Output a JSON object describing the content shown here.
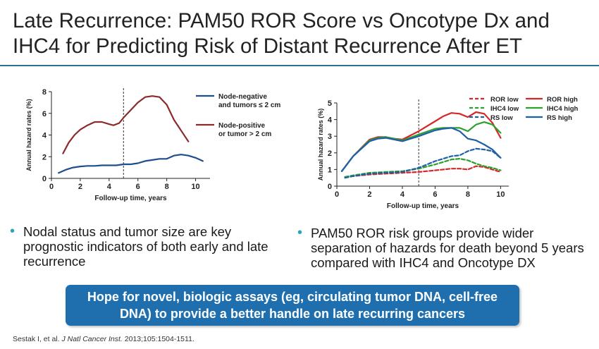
{
  "slide": {
    "title": "Late Recurrence: PAM50 ROR Score vs Oncotype Dx and IHC4 for Predicting Risk of Distant Recurrence After ET",
    "bullets": [
      "Nodal status and tumor size are key prognostic indicators of both early and late recurrence",
      "PAM50 ROR risk groups provide wider separation of hazards for death beyond 5 years compared with IHC4 and Oncotype DX"
    ],
    "banner": "Hope for novel, biologic assays (eg, circulating tumor DNA, cell-free DNA) to provide a better handle on late recurring cancers",
    "citation": {
      "authors": "Sestak I, et al.",
      "journal": "J Natl Cancer Inst.",
      "details": "2013;105:1504-1511."
    },
    "colors": {
      "title_rule": "#2e6f8e",
      "bullet_dot": "#2aa6b3",
      "banner_bg": "#1f6fae"
    }
  },
  "chart_data": [
    {
      "type": "line",
      "xlabel": "Follow-up time, years",
      "ylabel": "Annual hazard rates (%)",
      "xlim": [
        0,
        11
      ],
      "ylim": [
        0,
        8
      ],
      "xticks": [
        0,
        2,
        4,
        6,
        8,
        10
      ],
      "yticks": [
        0,
        2,
        4,
        6,
        8
      ],
      "reference_line_x": 5,
      "legend_position": "right",
      "series": [
        {
          "name": "Node-negative and tumors ≤ 2 cm",
          "legend_lines": [
            "Node-negative",
            "and tumors ≤ 2 cm"
          ],
          "color": "#1f4e8c",
          "dashed": false,
          "x": [
            0.5,
            1,
            1.5,
            2,
            2.5,
            3,
            3.5,
            4,
            4.5,
            5,
            5.5,
            6,
            6.5,
            7,
            7.5,
            8,
            8.5,
            9,
            9.5,
            10,
            10.5
          ],
          "y": [
            0.5,
            0.8,
            1.0,
            1.1,
            1.15,
            1.15,
            1.2,
            1.2,
            1.2,
            1.3,
            1.3,
            1.4,
            1.6,
            1.7,
            1.8,
            1.8,
            2.1,
            2.2,
            2.1,
            1.9,
            1.6
          ]
        },
        {
          "name": "Node-positive or tumor > 2 cm",
          "legend_lines": [
            "Node-positive",
            "or tumor > 2 cm"
          ],
          "color": "#8b2b2b",
          "dashed": false,
          "x": [
            0.8,
            1.2,
            1.6,
            2,
            2.5,
            3,
            3.5,
            4,
            4.3,
            4.7,
            5,
            5.5,
            6,
            6.5,
            7,
            7.5,
            8,
            8.5,
            9,
            9.5
          ],
          "y": [
            2.3,
            3.3,
            4.0,
            4.5,
            4.9,
            5.2,
            5.2,
            5.0,
            4.9,
            5.1,
            5.6,
            6.3,
            7.0,
            7.5,
            7.6,
            7.5,
            6.8,
            5.4,
            4.4,
            3.4
          ]
        }
      ]
    },
    {
      "type": "line",
      "xlabel": "Follow-up time, years",
      "ylabel": "Annual hazard rates (%)",
      "xlim": [
        0,
        10.5
      ],
      "ylim": [
        0,
        5
      ],
      "xticks": [
        0,
        2,
        4,
        6,
        8,
        10
      ],
      "yticks": [
        0,
        1,
        2,
        3,
        4,
        5
      ],
      "reference_line_x": 5,
      "legend_position": "top-right",
      "series": [
        {
          "name": "ROR low",
          "color": "#d62728",
          "dashed": true,
          "x": [
            0.5,
            1,
            2,
            3,
            4,
            5,
            6,
            7,
            7.5,
            8,
            8.5,
            9,
            9.5,
            10
          ],
          "y": [
            0.55,
            0.6,
            0.7,
            0.75,
            0.8,
            0.85,
            0.95,
            1.05,
            1.05,
            1.0,
            1.2,
            1.15,
            1.0,
            0.85
          ]
        },
        {
          "name": "IHC4 low",
          "color": "#2ca02c",
          "dashed": true,
          "x": [
            0.5,
            1,
            2,
            3,
            4,
            5,
            6,
            7,
            7.5,
            8,
            8.5,
            9,
            9.5,
            10
          ],
          "y": [
            0.55,
            0.65,
            0.8,
            0.85,
            0.9,
            1.05,
            1.3,
            1.6,
            1.65,
            1.55,
            1.35,
            1.2,
            1.1,
            0.95
          ]
        },
        {
          "name": "RS low",
          "color": "#1f5fa8",
          "dashed": true,
          "x": [
            0.5,
            1,
            2,
            3,
            4,
            5,
            6,
            7,
            7.5,
            8,
            8.5,
            9,
            9.5,
            10
          ],
          "y": [
            0.5,
            0.6,
            0.75,
            0.8,
            0.85,
            1.1,
            1.5,
            1.8,
            1.85,
            2.1,
            2.25,
            2.2,
            2.1,
            1.7
          ]
        },
        {
          "name": "ROR high",
          "color": "#d62728",
          "dashed": false,
          "x": [
            0.3,
            1,
            2,
            2.5,
            3,
            3.5,
            4,
            5,
            6,
            6.5,
            7,
            7.5,
            8,
            8.5,
            9,
            9.5,
            10
          ],
          "y": [
            0.9,
            1.8,
            2.8,
            2.95,
            2.95,
            2.85,
            2.8,
            3.3,
            3.9,
            4.2,
            4.4,
            4.35,
            4.15,
            4.45,
            4.35,
            3.8,
            2.9
          ]
        },
        {
          "name": "IHC4 high",
          "color": "#2ca02c",
          "dashed": false,
          "x": [
            0.3,
            1,
            2,
            2.5,
            3,
            3.5,
            4,
            5,
            6,
            6.5,
            7,
            7.5,
            8,
            8.5,
            9,
            9.5,
            10
          ],
          "y": [
            0.9,
            1.8,
            2.75,
            2.9,
            2.95,
            2.85,
            2.75,
            3.1,
            3.45,
            3.5,
            3.5,
            3.5,
            3.3,
            3.7,
            3.85,
            3.7,
            3.2
          ]
        },
        {
          "name": "RS high",
          "color": "#1f5fa8",
          "dashed": false,
          "x": [
            0.3,
            1,
            2,
            2.5,
            3,
            3.5,
            4,
            5,
            6,
            6.5,
            7,
            7.5,
            8,
            8.5,
            9,
            9.5,
            10
          ],
          "y": [
            0.9,
            1.8,
            2.7,
            2.85,
            2.9,
            2.8,
            2.7,
            3.0,
            3.35,
            3.45,
            3.5,
            3.3,
            2.85,
            2.75,
            2.5,
            2.2,
            1.7
          ]
        }
      ]
    }
  ]
}
